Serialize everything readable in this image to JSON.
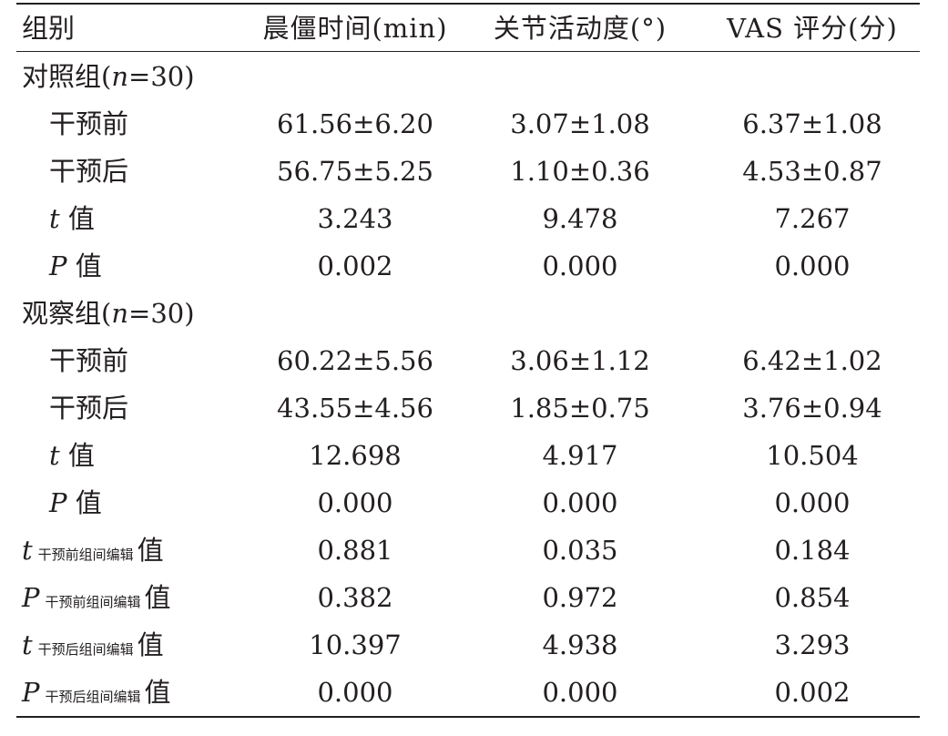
{
  "table": {
    "headers": [
      "组别",
      "晨僵时间(min)",
      "关节活动度(°)",
      "VAS 评分(分)"
    ],
    "groups": [
      {
        "label_pre": "对照组(",
        "label_n": "n",
        "label_post": "=30)",
        "rows": [
          {
            "label": "干预前",
            "values": [
              "61.56±6.20",
              "3.07±1.08",
              "6.37±1.08"
            ]
          },
          {
            "label": "干预后",
            "values": [
              "56.75±5.25",
              "1.10±0.36",
              "4.53±0.87"
            ]
          },
          {
            "var": "t",
            "label": "值",
            "values": [
              "3.243",
              "9.478",
              "7.267"
            ]
          },
          {
            "var": "P",
            "label": "值",
            "values": [
              "0.002",
              "0.000",
              "0.000"
            ]
          }
        ]
      },
      {
        "label_pre": "观察组(",
        "label_n": "n",
        "label_post": "=30)",
        "rows": [
          {
            "label": "干预前",
            "values": [
              "60.22±5.56",
              "3.06±1.12",
              "6.42±1.02"
            ]
          },
          {
            "label": "干预后",
            "values": [
              "43.55±4.56",
              "1.85±0.75",
              "3.76±0.94"
            ]
          },
          {
            "var": "t",
            "label": "值",
            "values": [
              "12.698",
              "4.917",
              "10.504"
            ]
          },
          {
            "var": "P",
            "label": "值",
            "values": [
              "0.000",
              "0.000",
              "0.000"
            ]
          }
        ]
      }
    ],
    "between": [
      {
        "var": "t",
        "sub": "干预前组间编辑",
        "label": "值",
        "values": [
          "0.881",
          "0.035",
          "0.184"
        ]
      },
      {
        "var": "P",
        "sub": "干预前组间编辑",
        "label": "值",
        "values": [
          "0.382",
          "0.972",
          "0.854"
        ]
      },
      {
        "var": "t",
        "sub": "干预后组间编辑",
        "label": "值",
        "values": [
          "10.397",
          "4.938",
          "3.293"
        ]
      },
      {
        "var": "P",
        "sub": "干预后组间编辑",
        "label": "值",
        "values": [
          "0.000",
          "0.000",
          "0.002"
        ]
      }
    ]
  }
}
